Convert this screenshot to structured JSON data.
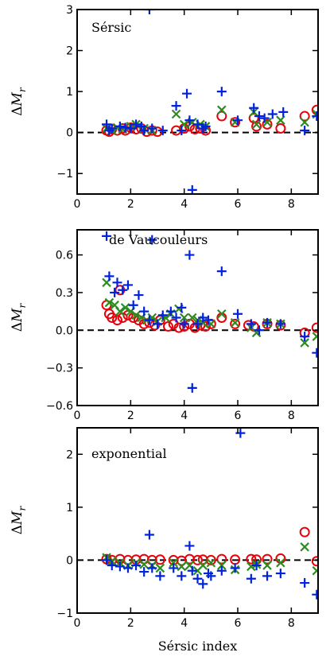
{
  "chart_data": [
    {
      "type": "scatter",
      "annotation": "Sérsic",
      "ylabel": "ΔM_r",
      "xlabel": "",
      "xlim": [
        0,
        9
      ],
      "ylim": [
        -1.5,
        3
      ],
      "xticks": [
        "0",
        "2",
        "4",
        "6",
        "8"
      ],
      "yticks": [
        -1,
        0,
        1,
        2,
        3
      ],
      "ytick_labels": [
        "−1",
        "0",
        "1",
        "2",
        "3"
      ],
      "reference_line": 0,
      "series": [
        {
          "marker": "circle",
          "color": "#e8000b",
          "points": [
            [
              1.1,
              0.05
            ],
            [
              1.2,
              0.02
            ],
            [
              1.3,
              0.08
            ],
            [
              1.5,
              0.05
            ],
            [
              1.7,
              0.1
            ],
            [
              1.8,
              0.05
            ],
            [
              2.0,
              0.12
            ],
            [
              2.2,
              0.08
            ],
            [
              2.4,
              0.1
            ],
            [
              2.6,
              0.02
            ],
            [
              2.8,
              0.05
            ],
            [
              3.0,
              0.02
            ],
            [
              3.7,
              0.05
            ],
            [
              4.0,
              0.1
            ],
            [
              4.2,
              0.15
            ],
            [
              4.4,
              0.08
            ],
            [
              4.6,
              0.1
            ],
            [
              4.8,
              0.05
            ],
            [
              5.4,
              0.4
            ],
            [
              5.9,
              0.25
            ],
            [
              6.6,
              0.35
            ],
            [
              6.7,
              0.15
            ],
            [
              7.1,
              0.2
            ],
            [
              7.6,
              0.1
            ],
            [
              8.5,
              0.4
            ],
            [
              8.95,
              0.55
            ]
          ]
        },
        {
          "marker": "x",
          "color": "#2e8b20",
          "points": [
            [
              1.1,
              0.1
            ],
            [
              1.3,
              0.05
            ],
            [
              1.5,
              0.12
            ],
            [
              1.7,
              0.08
            ],
            [
              2.0,
              0.15
            ],
            [
              2.2,
              0.2
            ],
            [
              2.5,
              0.1
            ],
            [
              2.8,
              0.05
            ],
            [
              3.7,
              0.45
            ],
            [
              4.0,
              0.2
            ],
            [
              4.3,
              0.25
            ],
            [
              4.6,
              0.2
            ],
            [
              4.8,
              0.15
            ],
            [
              5.4,
              0.55
            ],
            [
              5.9,
              0.25
            ],
            [
              6.6,
              0.5
            ],
            [
              6.7,
              0.2
            ],
            [
              7.1,
              0.25
            ],
            [
              7.6,
              0.3
            ],
            [
              8.5,
              0.25
            ],
            [
              8.95,
              0.45
            ]
          ]
        },
        {
          "marker": "plus",
          "color": "#0022dd",
          "points": [
            [
              1.1,
              0.2
            ],
            [
              1.2,
              0.05
            ],
            [
              1.3,
              0.1
            ],
            [
              1.6,
              0.15
            ],
            [
              1.8,
              0.12
            ],
            [
              2.0,
              0.1
            ],
            [
              2.2,
              0.2
            ],
            [
              2.4,
              0.15
            ],
            [
              2.5,
              0.05
            ],
            [
              2.8,
              0.1
            ],
            [
              3.2,
              0.05
            ],
            [
              3.7,
              0.65
            ],
            [
              3.9,
              0.05
            ],
            [
              4.1,
              0.95
            ],
            [
              4.2,
              0.3
            ],
            [
              4.3,
              -1.4
            ],
            [
              4.5,
              0.2
            ],
            [
              4.7,
              0.1
            ],
            [
              4.8,
              0.15
            ],
            [
              5.4,
              1.0
            ],
            [
              6.0,
              0.3
            ],
            [
              6.6,
              0.6
            ],
            [
              6.8,
              0.4
            ],
            [
              7.0,
              0.35
            ],
            [
              7.3,
              0.45
            ],
            [
              7.7,
              0.5
            ],
            [
              8.5,
              0.05
            ],
            [
              8.95,
              0.4
            ],
            [
              2.7,
              3.0
            ]
          ]
        }
      ]
    },
    {
      "type": "scatter",
      "annotation": "de Vaucouleurs",
      "ylabel": "ΔM_r",
      "xlabel": "",
      "xlim": [
        0,
        9
      ],
      "ylim": [
        -0.6,
        0.8
      ],
      "xticks": [
        "0",
        "2",
        "4",
        "6",
        "8"
      ],
      "yticks": [
        -0.6,
        -0.3,
        0.0,
        0.3,
        0.6
      ],
      "ytick_labels": [
        "−0.6",
        "−0.3",
        "0.0",
        "0.3",
        "0.6"
      ],
      "reference_line": 0,
      "series": [
        {
          "marker": "circle",
          "color": "#e8000b",
          "points": [
            [
              1.1,
              0.2
            ],
            [
              1.2,
              0.13
            ],
            [
              1.3,
              0.1
            ],
            [
              1.5,
              0.08
            ],
            [
              1.6,
              0.32
            ],
            [
              1.7,
              0.1
            ],
            [
              1.9,
              0.12
            ],
            [
              2.1,
              0.1
            ],
            [
              2.3,
              0.08
            ],
            [
              2.5,
              0.05
            ],
            [
              2.7,
              0.06
            ],
            [
              2.9,
              0.04
            ],
            [
              3.1,
              0.08
            ],
            [
              3.4,
              0.03
            ],
            [
              3.6,
              0.05
            ],
            [
              3.8,
              0.02
            ],
            [
              4.0,
              0.03
            ],
            [
              4.2,
              0.05
            ],
            [
              4.4,
              0.02
            ],
            [
              4.6,
              0.04
            ],
            [
              4.8,
              0.03
            ],
            [
              5.0,
              0.05
            ],
            [
              5.4,
              0.1
            ],
            [
              5.9,
              0.05
            ],
            [
              6.4,
              0.04
            ],
            [
              6.6,
              0.03
            ],
            [
              7.1,
              0.05
            ],
            [
              7.6,
              0.04
            ],
            [
              8.5,
              -0.02
            ],
            [
              8.95,
              0.02
            ]
          ]
        },
        {
          "marker": "x",
          "color": "#2e8b20",
          "points": [
            [
              1.1,
              0.38
            ],
            [
              1.2,
              0.22
            ],
            [
              1.4,
              0.2
            ],
            [
              1.6,
              0.15
            ],
            [
              1.8,
              0.18
            ],
            [
              2.0,
              0.15
            ],
            [
              2.2,
              0.12
            ],
            [
              2.4,
              0.1
            ],
            [
              2.6,
              0.08
            ],
            [
              2.8,
              0.1
            ],
            [
              3.0,
              0.07
            ],
            [
              3.3,
              0.1
            ],
            [
              3.5,
              0.13
            ],
            [
              3.8,
              0.17
            ],
            [
              4.0,
              0.1
            ],
            [
              4.3,
              0.1
            ],
            [
              4.5,
              0.08
            ],
            [
              4.7,
              0.06
            ],
            [
              5.0,
              0.05
            ],
            [
              5.4,
              0.13
            ],
            [
              5.9,
              0.06
            ],
            [
              6.5,
              0.02
            ],
            [
              6.7,
              -0.02
            ],
            [
              7.1,
              0.06
            ],
            [
              7.6,
              0.05
            ],
            [
              8.5,
              -0.1
            ],
            [
              8.95,
              -0.05
            ]
          ]
        },
        {
          "marker": "plus",
          "color": "#0022dd",
          "points": [
            [
              1.1,
              0.75
            ],
            [
              1.2,
              0.43
            ],
            [
              1.4,
              0.3
            ],
            [
              1.5,
              0.38
            ],
            [
              1.7,
              0.32
            ],
            [
              1.9,
              0.36
            ],
            [
              2.1,
              0.2
            ],
            [
              2.3,
              0.28
            ],
            [
              2.5,
              0.15
            ],
            [
              2.7,
              0.08
            ],
            [
              2.8,
              0.72
            ],
            [
              3.0,
              0.05
            ],
            [
              3.2,
              0.12
            ],
            [
              3.5,
              0.15
            ],
            [
              3.7,
              0.1
            ],
            [
              3.9,
              0.18
            ],
            [
              4.0,
              0.05
            ],
            [
              4.2,
              0.6
            ],
            [
              4.3,
              -0.46
            ],
            [
              4.5,
              0.05
            ],
            [
              4.7,
              0.1
            ],
            [
              4.9,
              0.08
            ],
            [
              5.4,
              0.47
            ],
            [
              6.0,
              0.13
            ],
            [
              6.5,
              0.05
            ],
            [
              6.8,
              0.0
            ],
            [
              7.1,
              0.06
            ],
            [
              7.6,
              0.05
            ],
            [
              8.5,
              -0.05
            ],
            [
              8.95,
              -0.18
            ]
          ]
        }
      ]
    },
    {
      "type": "scatter",
      "annotation": "exponential",
      "ylabel": "ΔM_r",
      "xlabel": "Sérsic index",
      "xlim": [
        0,
        9
      ],
      "ylim": [
        -1,
        2.5
      ],
      "xticks": [
        "0",
        "2",
        "4",
        "6",
        "8"
      ],
      "yticks": [
        -1,
        0,
        1,
        2
      ],
      "ytick_labels": [
        "−1",
        "0",
        "1",
        "2"
      ],
      "reference_line": 0,
      "series": [
        {
          "marker": "circle",
          "color": "#e8000b",
          "points": [
            [
              1.1,
              0.02
            ],
            [
              1.3,
              0.0
            ],
            [
              1.6,
              0.02
            ],
            [
              1.9,
              0.0
            ],
            [
              2.2,
              0.01
            ],
            [
              2.5,
              0.02
            ],
            [
              2.8,
              0.0
            ],
            [
              3.1,
              0.01
            ],
            [
              3.6,
              0.0
            ],
            [
              3.9,
              -0.01
            ],
            [
              4.2,
              0.02
            ],
            [
              4.5,
              0.0
            ],
            [
              4.7,
              0.01
            ],
            [
              5.0,
              0.0
            ],
            [
              5.4,
              0.02
            ],
            [
              5.9,
              0.01
            ],
            [
              6.5,
              0.02
            ],
            [
              6.7,
              0.01
            ],
            [
              7.1,
              0.02
            ],
            [
              7.6,
              0.03
            ],
            [
              8.5,
              0.53
            ],
            [
              8.95,
              -0.02
            ]
          ]
        },
        {
          "marker": "x",
          "color": "#2e8b20",
          "points": [
            [
              1.1,
              0.05
            ],
            [
              1.3,
              -0.02
            ],
            [
              1.6,
              -0.05
            ],
            [
              1.9,
              -0.1
            ],
            [
              2.2,
              -0.05
            ],
            [
              2.5,
              -0.08
            ],
            [
              2.8,
              -0.1
            ],
            [
              3.1,
              -0.15
            ],
            [
              3.6,
              -0.05
            ],
            [
              3.9,
              -0.12
            ],
            [
              4.2,
              -0.1
            ],
            [
              4.5,
              -0.2
            ],
            [
              4.7,
              -0.1
            ],
            [
              5.0,
              -0.05
            ],
            [
              5.4,
              -0.1
            ],
            [
              5.9,
              -0.18
            ],
            [
              6.5,
              -0.12
            ],
            [
              6.7,
              -0.08
            ],
            [
              7.1,
              -0.1
            ],
            [
              7.6,
              -0.05
            ],
            [
              8.5,
              0.25
            ],
            [
              8.95,
              -0.2
            ]
          ]
        },
        {
          "marker": "plus",
          "color": "#0022dd",
          "points": [
            [
              1.1,
              0.0
            ],
            [
              1.3,
              -0.1
            ],
            [
              1.6,
              -0.12
            ],
            [
              1.9,
              -0.15
            ],
            [
              2.2,
              -0.1
            ],
            [
              2.5,
              -0.22
            ],
            [
              2.7,
              0.48
            ],
            [
              2.8,
              -0.15
            ],
            [
              3.1,
              -0.3
            ],
            [
              3.6,
              -0.15
            ],
            [
              3.9,
              -0.3
            ],
            [
              4.2,
              0.27
            ],
            [
              4.3,
              -0.2
            ],
            [
              4.5,
              -0.35
            ],
            [
              4.7,
              -0.45
            ],
            [
              4.9,
              -0.25
            ],
            [
              5.0,
              -0.3
            ],
            [
              5.4,
              -0.2
            ],
            [
              5.9,
              -0.15
            ],
            [
              6.1,
              2.4
            ],
            [
              6.5,
              -0.35
            ],
            [
              6.7,
              -0.1
            ],
            [
              7.1,
              -0.3
            ],
            [
              7.6,
              -0.25
            ],
            [
              8.5,
              -0.43
            ],
            [
              8.95,
              -0.65
            ]
          ]
        }
      ]
    }
  ]
}
